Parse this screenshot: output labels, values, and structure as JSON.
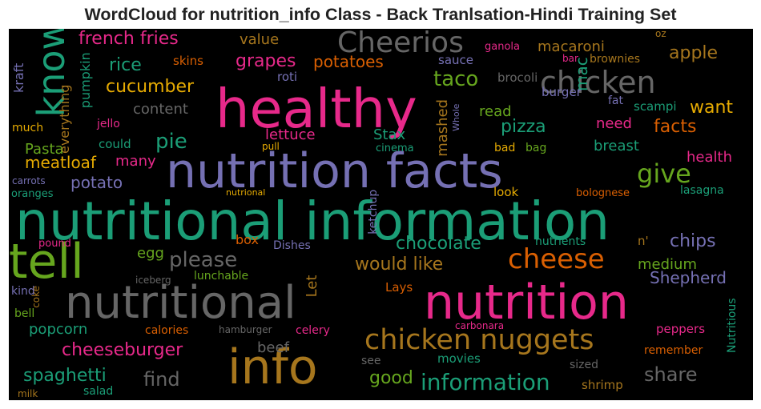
{
  "title": "WordCloud for nutrition_info Class - Back Tranlsation-Hindi Training Set",
  "background_color": "#000000",
  "palette": {
    "green": "#1b9e77",
    "orange": "#d95f02",
    "purple": "#7570b3",
    "pink": "#e7298a",
    "lime": "#66a61e",
    "yellow": "#e6ab02",
    "brown": "#a6761d",
    "gray": "#666666"
  },
  "words": [
    {
      "text": "nutritional information",
      "color": "green"
    },
    {
      "text": "healthy",
      "color": "pink"
    },
    {
      "text": "nutrition facts",
      "color": "purple"
    },
    {
      "text": "nutrition",
      "color": "pink"
    },
    {
      "text": "nutritional",
      "color": "gray"
    },
    {
      "text": "info",
      "color": "brown"
    },
    {
      "text": "tell",
      "color": "lime"
    },
    {
      "text": "know",
      "color": "green"
    },
    {
      "text": "Cheerios",
      "color": "gray"
    },
    {
      "text": "chicken",
      "color": "gray"
    },
    {
      "text": "chicken nuggets",
      "color": "brown"
    },
    {
      "text": "cheese",
      "color": "orange"
    },
    {
      "text": "information",
      "color": "green"
    },
    {
      "text": "give",
      "color": "lime"
    },
    {
      "text": "please",
      "color": "gray"
    },
    {
      "text": "taco",
      "color": "lime"
    },
    {
      "text": "french fries",
      "color": "pink"
    },
    {
      "text": "grapes",
      "color": "pink"
    },
    {
      "text": "apple",
      "color": "brown"
    },
    {
      "text": "pie",
      "color": "green"
    },
    {
      "text": "cucumber",
      "color": "yellow"
    },
    {
      "text": "facts",
      "color": "orange"
    },
    {
      "text": "pizza",
      "color": "green"
    },
    {
      "text": "chocolate",
      "color": "green"
    },
    {
      "text": "share",
      "color": "gray"
    },
    {
      "text": "spaghetti",
      "color": "green"
    },
    {
      "text": "cheeseburger",
      "color": "pink"
    },
    {
      "text": "find",
      "color": "gray"
    },
    {
      "text": "good",
      "color": "lime"
    },
    {
      "text": "would like",
      "color": "brown"
    },
    {
      "text": "chips",
      "color": "purple"
    },
    {
      "text": "Shepherd",
      "color": "purple"
    },
    {
      "text": "rice",
      "color": "green"
    },
    {
      "text": "potatoes",
      "color": "orange"
    },
    {
      "text": "mac",
      "color": "green"
    },
    {
      "text": "want",
      "color": "yellow"
    },
    {
      "text": "macaroni",
      "color": "brown"
    },
    {
      "text": "value",
      "color": "brown"
    },
    {
      "text": "meatloaf",
      "color": "yellow"
    },
    {
      "text": "Pasta",
      "color": "lime"
    },
    {
      "text": "potato",
      "color": "purple"
    },
    {
      "text": "many",
      "color": "pink"
    },
    {
      "text": "content",
      "color": "gray"
    },
    {
      "text": "lettuce",
      "color": "pink"
    },
    {
      "text": "Stax",
      "color": "green"
    },
    {
      "text": "mashed",
      "color": "brown"
    },
    {
      "text": "read",
      "color": "lime"
    },
    {
      "text": "need",
      "color": "pink"
    },
    {
      "text": "breast",
      "color": "green"
    },
    {
      "text": "health",
      "color": "pink"
    },
    {
      "text": "medium",
      "color": "lime"
    },
    {
      "text": "popcorn",
      "color": "green"
    },
    {
      "text": "beef",
      "color": "gray"
    },
    {
      "text": "Let",
      "color": "brown"
    },
    {
      "text": "egg",
      "color": "lime"
    },
    {
      "text": "box",
      "color": "orange"
    },
    {
      "text": "pumpkin",
      "color": "green"
    },
    {
      "text": "everything",
      "color": "brown"
    },
    {
      "text": "kraft",
      "color": "purple"
    },
    {
      "text": "brocoli",
      "color": "gray"
    },
    {
      "text": "burger",
      "color": "purple"
    },
    {
      "text": "scampi",
      "color": "green"
    },
    {
      "text": "fat",
      "color": "purple"
    },
    {
      "text": "Whole",
      "color": "purple"
    },
    {
      "text": "skins",
      "color": "orange"
    },
    {
      "text": "roti",
      "color": "purple"
    },
    {
      "text": "sauce",
      "color": "purple"
    },
    {
      "text": "ganola",
      "color": "pink"
    },
    {
      "text": "bar",
      "color": "pink"
    },
    {
      "text": "brownies",
      "color": "brown"
    },
    {
      "text": "oz",
      "color": "brown"
    },
    {
      "text": "much",
      "color": "yellow"
    },
    {
      "text": "jello",
      "color": "pink"
    },
    {
      "text": "could",
      "color": "green"
    },
    {
      "text": "pull",
      "color": "yellow"
    },
    {
      "text": "cinema",
      "color": "green"
    },
    {
      "text": "bad",
      "color": "yellow"
    },
    {
      "text": "bag",
      "color": "lime"
    },
    {
      "text": "carrots",
      "color": "purple"
    },
    {
      "text": "oranges",
      "color": "green"
    },
    {
      "text": "nutrional",
      "color": "yellow"
    },
    {
      "text": "look",
      "color": "yellow"
    },
    {
      "text": "bolognese",
      "color": "orange"
    },
    {
      "text": "lasagna",
      "color": "green"
    },
    {
      "text": "ketchup",
      "color": "purple"
    },
    {
      "text": "nutrients",
      "color": "green"
    },
    {
      "text": "n'",
      "color": "brown"
    },
    {
      "text": "pound",
      "color": "pink"
    },
    {
      "text": "Dishes",
      "color": "purple"
    },
    {
      "text": "lunchable",
      "color": "lime"
    },
    {
      "text": "iceberg",
      "color": "gray"
    },
    {
      "text": "kind",
      "color": "purple"
    },
    {
      "text": "coke",
      "color": "brown"
    },
    {
      "text": "bell",
      "color": "lime"
    },
    {
      "text": "Lays",
      "color": "orange"
    },
    {
      "text": "Nutritious",
      "color": "green"
    },
    {
      "text": "calories",
      "color": "orange"
    },
    {
      "text": "hamburger",
      "color": "gray"
    },
    {
      "text": "celery",
      "color": "pink"
    },
    {
      "text": "carbonara",
      "color": "pink"
    },
    {
      "text": "peppers",
      "color": "pink"
    },
    {
      "text": "remember",
      "color": "orange"
    },
    {
      "text": "see",
      "color": "gray"
    },
    {
      "text": "movies",
      "color": "green"
    },
    {
      "text": "sized",
      "color": "gray"
    },
    {
      "text": "shrimp",
      "color": "brown"
    },
    {
      "text": "salad",
      "color": "green"
    },
    {
      "text": "milk",
      "color": "brown"
    }
  ]
}
